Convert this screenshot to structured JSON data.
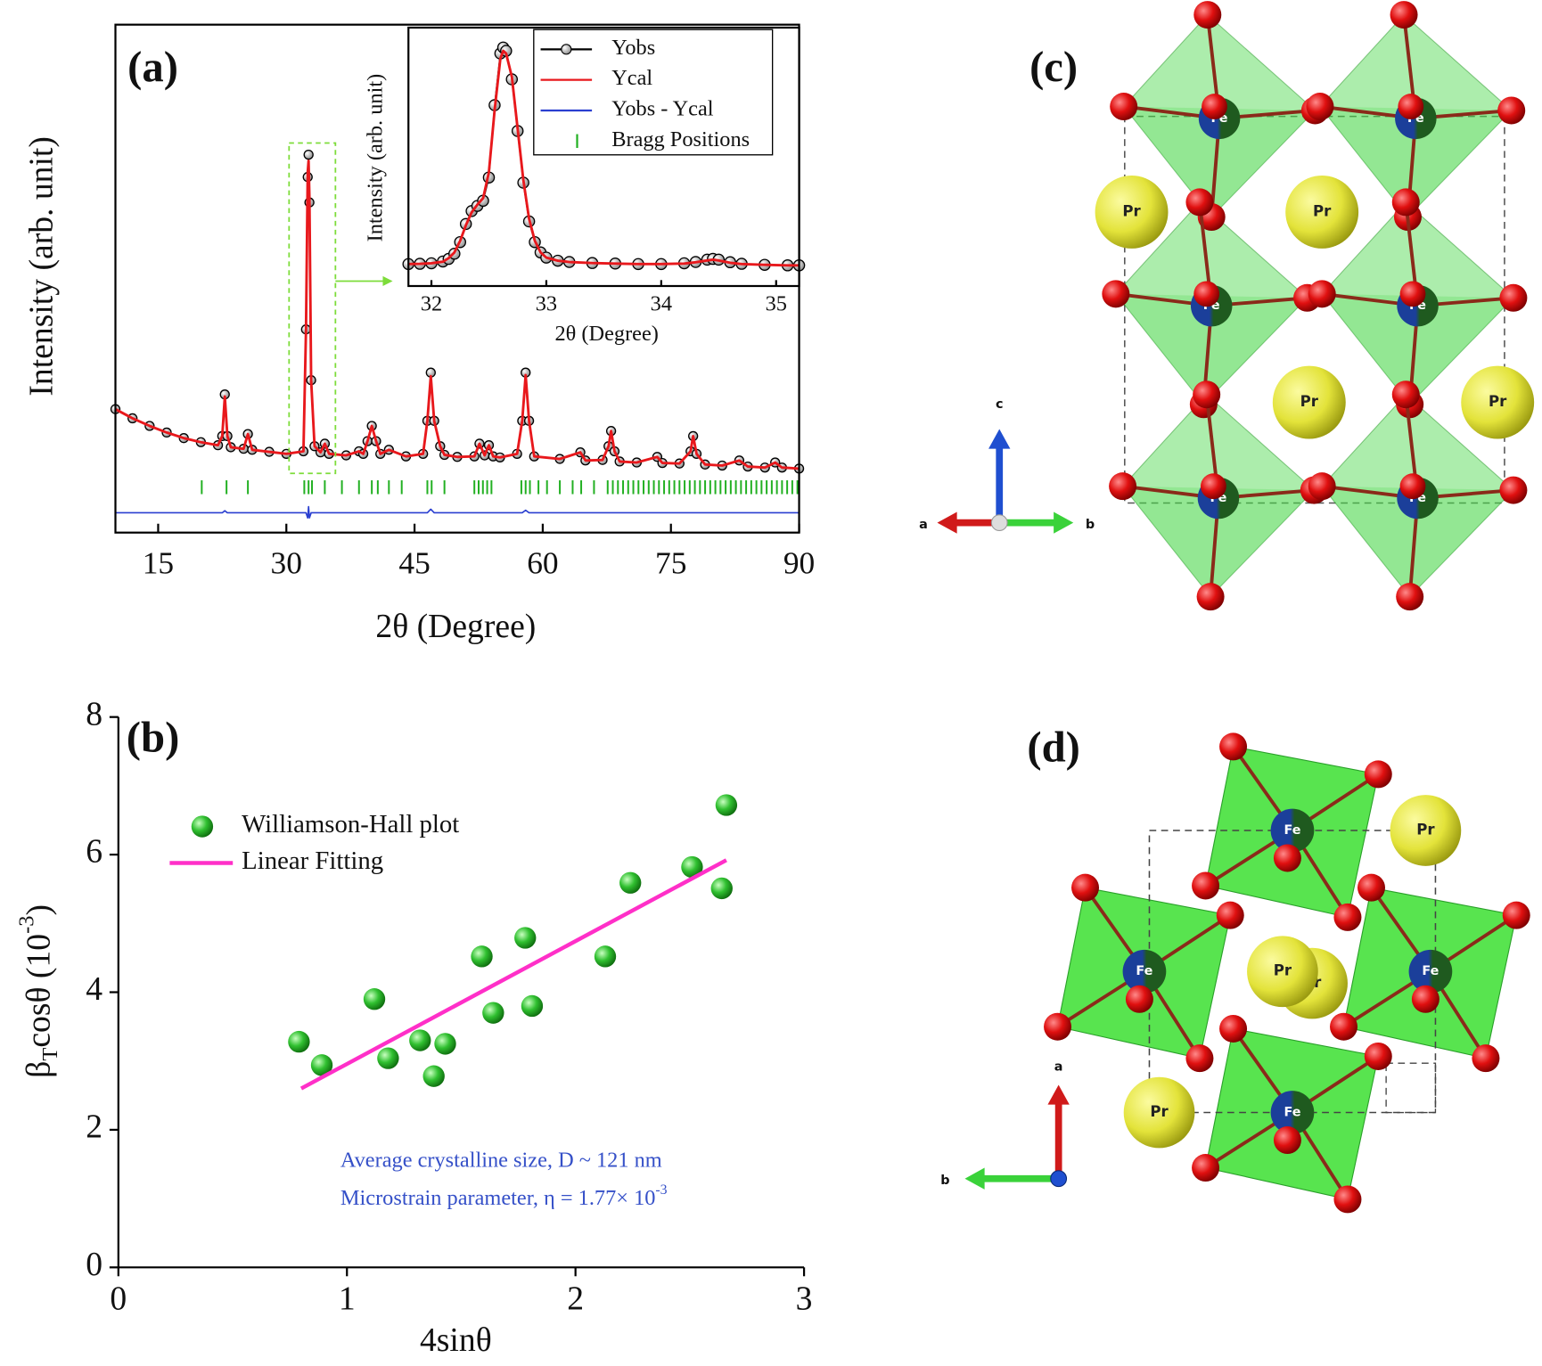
{
  "chart_data": [
    {
      "type": "line",
      "label": "(a)",
      "xlabel": "2θ (Degree)",
      "ylabel": "Intensity (arb. unit)",
      "xlim": [
        10,
        90
      ],
      "xticks": [
        15,
        30,
        45,
        60,
        75,
        90
      ],
      "ylim": [
        0,
        100
      ],
      "x": [
        10,
        12,
        14,
        16,
        18,
        20,
        22,
        22.5,
        22.8,
        23.1,
        23.5,
        25,
        25.5,
        26,
        28,
        30,
        32,
        32.3,
        32.5,
        32.6,
        32.7,
        32.9,
        33.3,
        34,
        34.5,
        35,
        37,
        38.5,
        39,
        39.5,
        40,
        40.5,
        41,
        42,
        44,
        46,
        46.5,
        46.9,
        47.3,
        48,
        48.5,
        50,
        52,
        52.6,
        53.2,
        53.7,
        54.2,
        55,
        57,
        57.6,
        58,
        58.4,
        59,
        62,
        64.4,
        65,
        67,
        67.7,
        68,
        68.4,
        69,
        71,
        73.4,
        74,
        76,
        77.3,
        77.6,
        78,
        79,
        81,
        83,
        84,
        86,
        87.2,
        88,
        90
      ],
      "series": [
        {
          "name": "Yobs",
          "color": "#000000",
          "marker": true,
          "line": true,
          "values": [
            24.3,
            22.5,
            21,
            19.7,
            18.6,
            17.8,
            17.2,
            19,
            27.2,
            19,
            16.8,
            16.5,
            19.4,
            16.3,
            15.9,
            15.5,
            16,
            40,
            70,
            74.4,
            65,
            30,
            17,
            15.8,
            17.5,
            15.5,
            15.2,
            16,
            15.5,
            18,
            21,
            18,
            15.5,
            16.3,
            15,
            15.5,
            22,
            31.5,
            22,
            17,
            15.3,
            14.9,
            15,
            17.5,
            15.2,
            17.2,
            15,
            14.8,
            15.5,
            22,
            31.5,
            22,
            15,
            14.5,
            15.8,
            14.2,
            14.3,
            17,
            20,
            16,
            14,
            13.8,
            14.9,
            13.7,
            13.6,
            16,
            19,
            15.5,
            13.4,
            13.2,
            14.2,
            13,
            12.8,
            13.8,
            12.8,
            12.6
          ]
        },
        {
          "name": "Ycal",
          "color": "#e8181c",
          "marker": false,
          "line": true,
          "values": [
            24.3,
            22.5,
            21,
            19.7,
            18.6,
            17.8,
            17.2,
            19,
            26.8,
            19,
            16.8,
            16.5,
            19.4,
            16.3,
            15.9,
            15.5,
            16,
            40,
            71,
            73.2,
            66,
            30,
            17,
            15.8,
            17.5,
            15.5,
            15.2,
            16,
            15.5,
            18,
            21,
            18,
            15.5,
            16.3,
            15,
            15.5,
            22,
            30.8,
            22,
            17,
            15.3,
            14.9,
            15,
            17.5,
            15.2,
            17.2,
            15,
            14.8,
            15.5,
            22,
            31,
            22,
            15,
            14.5,
            15.8,
            14.2,
            14.3,
            17,
            20,
            16,
            14,
            13.8,
            14.9,
            13.7,
            13.6,
            16,
            19,
            15.5,
            13.4,
            13.2,
            14.2,
            13,
            12.8,
            13.8,
            12.8,
            12.6
          ]
        },
        {
          "name": "Yobs - Ycal",
          "color": "#2a3fd0",
          "marker": false,
          "line": true,
          "values": [
            3.9,
            3.9,
            3.9,
            3.9,
            3.9,
            3.9,
            3.9,
            3.9,
            4.3,
            3.9,
            3.9,
            3.9,
            3.9,
            3.9,
            3.9,
            3.9,
            3.9,
            3.9,
            2.9,
            5.1,
            2.9,
            3.9,
            3.9,
            3.9,
            3.9,
            3.9,
            3.9,
            3.9,
            3.9,
            3.9,
            3.9,
            3.9,
            3.9,
            3.9,
            3.9,
            3.9,
            3.9,
            4.6,
            3.9,
            3.9,
            3.9,
            3.9,
            3.9,
            3.9,
            3.9,
            3.9,
            3.9,
            3.9,
            3.9,
            3.9,
            4.4,
            3.9,
            3.9,
            3.9,
            3.9,
            3.9,
            3.9,
            3.9,
            3.9,
            3.9,
            3.9,
            3.9,
            3.9,
            3.9,
            3.9,
            3.9,
            3.9,
            3.9,
            3.9,
            3.9,
            3.9,
            3.9,
            3.9,
            3.9,
            3.9,
            3.9
          ]
        }
      ],
      "bragg": {
        "name": "Bragg Positions",
        "color": "#22b022",
        "x": [
          20.1,
          23,
          25.5,
          32.1,
          32.6,
          33,
          34.5,
          36.5,
          38.5,
          40,
          40.7,
          42,
          43.5,
          46.5,
          47,
          48.5,
          52,
          52.5,
          53,
          53.5,
          54,
          57.5,
          58,
          58.5,
          59.5,
          60.5,
          62,
          63.5,
          64.5,
          66,
          67.6,
          68.2,
          68.8,
          69.4,
          70,
          70.6,
          71.2,
          71.8,
          72.4,
          73,
          73.6,
          74.2,
          74.8,
          75.4,
          76,
          76.6,
          77.2,
          77.8,
          78.4,
          79,
          79.6,
          80.2,
          80.8,
          81.4,
          82,
          82.6,
          83.2,
          83.8,
          84.4,
          85,
          85.6,
          86.2,
          86.8,
          87.4,
          88,
          88.6,
          89.2,
          89.8
        ]
      }
    },
    {
      "type": "line",
      "xlabel": "2θ (Degree)",
      "ylabel": "Intensity (arb. unit)",
      "xlim": [
        31.8,
        35.2
      ],
      "xticks": [
        32,
        33,
        34,
        35
      ],
      "ylim": [
        0,
        100
      ],
      "x": [
        31.8,
        31.9,
        32,
        32.1,
        32.15,
        32.2,
        32.25,
        32.3,
        32.35,
        32.4,
        32.45,
        32.5,
        32.55,
        32.6,
        32.625,
        32.65,
        32.7,
        32.75,
        32.8,
        32.85,
        32.9,
        32.95,
        33,
        33.1,
        33.2,
        33.4,
        33.6,
        33.8,
        34,
        34.2,
        34.3,
        34.4,
        34.45,
        34.5,
        34.6,
        34.7,
        34.9,
        35.1,
        35.2
      ],
      "series": [
        {
          "color": "#000000",
          "marker": true,
          "line": true,
          "values": [
            8.5,
            8.6,
            8.8,
            9.5,
            10.5,
            12.5,
            17,
            24,
            29,
            31,
            33,
            42,
            70,
            90,
            92.3,
            91,
            80,
            60,
            40,
            25,
            17,
            13,
            11,
            9.8,
            9.3,
            8.9,
            8.7,
            8.5,
            8.5,
            8.8,
            9.3,
            10.2,
            10.5,
            10.2,
            9.2,
            8.6,
            8.2,
            8,
            8
          ]
        },
        {
          "color": "#e8181c",
          "marker": false,
          "line": true,
          "values": [
            8.5,
            8.6,
            8.8,
            9.4,
            10.8,
            13,
            17.5,
            23.5,
            28.5,
            31.5,
            34,
            44,
            68,
            88,
            91,
            90,
            81,
            61,
            41,
            26,
            17.5,
            13,
            11,
            9.8,
            9.3,
            8.9,
            8.7,
            8.5,
            8.5,
            8.7,
            9.2,
            9.9,
            10.2,
            9.9,
            9,
            8.5,
            8.2,
            8,
            8
          ]
        }
      ]
    },
    {
      "type": "scatter",
      "label": "(b)",
      "xlabel": "4sinθ",
      "ylabel": [
        "β",
        "T",
        "cosθ (10",
        "-3",
        ")"
      ],
      "xlim": [
        0,
        3
      ],
      "xticks": [
        0,
        1,
        2,
        3
      ],
      "ylim": [
        0,
        8
      ],
      "yticks": [
        0,
        2,
        4,
        6,
        8
      ],
      "series": [
        {
          "name": "Williamson-Hall plot",
          "color": "#22b022",
          "marker": true,
          "line": false,
          "x": [
            0.79,
            0.89,
            1.12,
            1.18,
            1.32,
            1.38,
            1.43,
            1.59,
            1.64,
            1.78,
            1.81,
            2.13,
            2.24,
            2.51,
            2.64,
            2.66
          ],
          "values": [
            3.28,
            2.94,
            3.9,
            3.04,
            3.3,
            2.78,
            3.25,
            4.52,
            3.7,
            4.79,
            3.8,
            4.52,
            5.59,
            5.82,
            5.51,
            6.72
          ]
        },
        {
          "name": "Linear Fitting",
          "color": "#ff2fc8",
          "marker": false,
          "line": true,
          "x": [
            0.8,
            2.66
          ],
          "values": [
            2.6,
            5.92
          ]
        }
      ],
      "annotations": [
        "Average crystalline size, D ~ 121 nm",
        [
          "Microstrain parameter, η = 1.77× 10",
          "-3"
        ]
      ]
    }
  ],
  "structures": [
    {
      "label": "(c)",
      "fe": "Fe",
      "pr": "Pr",
      "axes": {
        "a": "a",
        "b": "b",
        "c": "c"
      }
    },
    {
      "label": "(d)",
      "fe": "Fe",
      "pr": "Pr",
      "axes": {
        "a": "a",
        "b": "b"
      }
    }
  ]
}
